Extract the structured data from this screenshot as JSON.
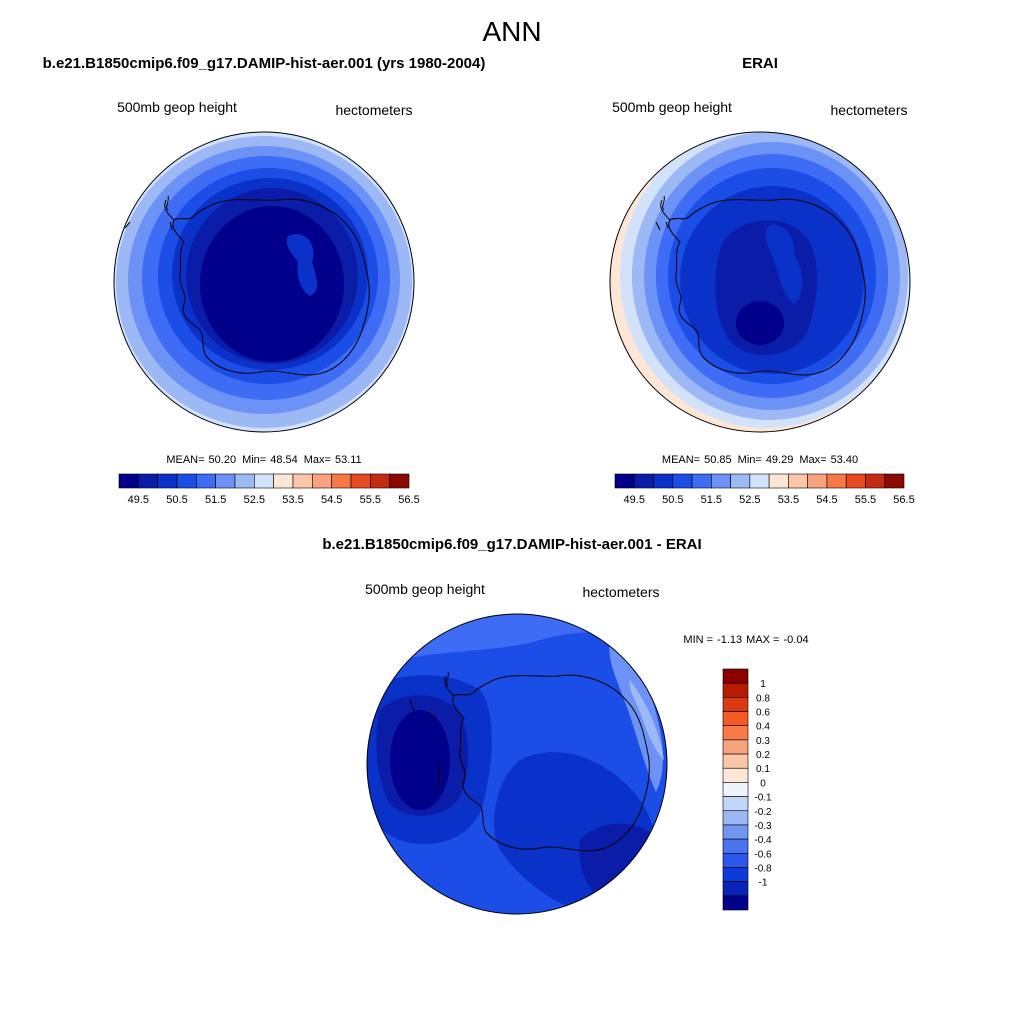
{
  "figure": {
    "title": "ANN"
  },
  "panel_left": {
    "title": "b.e21.B1850cmip6.f09_g17.DAMIP-hist-aer.001 (yrs 1980-2004)",
    "variable": "500mb geop height",
    "units": "hectometers",
    "stats": {
      "mean_label": "MEAN=",
      "mean": "50.20",
      "min_label": "Min=",
      "min": "48.54",
      "max_label": "Max=",
      "max": "53.11"
    }
  },
  "panel_right": {
    "title": "ERAI",
    "variable": "500mb geop height",
    "units": "hectometers",
    "stats": {
      "mean_label": "MEAN=",
      "mean": "50.85",
      "min_label": "Min=",
      "min": "49.29",
      "max_label": "Max=",
      "max": "53.40"
    }
  },
  "panel_diff": {
    "title": "b.e21.B1850cmip6.f09_g17.DAMIP-hist-aer.001 - ERAI",
    "variable": "500mb geop height",
    "units": "hectometers",
    "stats": {
      "min_label": "MIN =",
      "min": "-1.13",
      "max_label": "MAX =",
      "max": "-0.04"
    }
  },
  "colorbar_abs": {
    "colors": [
      "#00008b",
      "#0a1ca8",
      "#0b32c8",
      "#1b4ee6",
      "#3e6cf5",
      "#6d92f5",
      "#9cb8f5",
      "#d2e2fa",
      "#fde6d6",
      "#fcc6a8",
      "#f9a27e",
      "#f67846",
      "#e84b22",
      "#c52b12",
      "#8b0a00"
    ],
    "labels": [
      "49.5",
      "50.5",
      "51.5",
      "52.5",
      "53.5",
      "54.5",
      "55.5",
      "56.5"
    ]
  },
  "colorbar_diff": {
    "colors": [
      "#8b0000",
      "#b71c00",
      "#d93a10",
      "#f55a20",
      "#f77c48",
      "#f9a27e",
      "#fcc6a8",
      "#fde6d6",
      "#eef4fd",
      "#c2d6fa",
      "#9cb8f5",
      "#7096f0",
      "#4a74ec",
      "#2a58ea",
      "#0b3cd8",
      "#0a24b8",
      "#00008b"
    ],
    "labels": [
      "1",
      "0.8",
      "0.6",
      "0.4",
      "0.3",
      "0.2",
      "0.1",
      "0",
      "-0.1",
      "-0.2",
      "-0.3",
      "-0.4",
      "-0.6",
      "-0.8",
      "-1"
    ]
  },
  "map_colors": {
    "level0": "#00008b",
    "level1": "#0a1ca8",
    "level2": "#0b32c8",
    "level3": "#1b4ee6",
    "level4": "#3e6cf5",
    "level5": "#6d92f5",
    "level6": "#9cb8f5",
    "level7": "#d2e2fa",
    "level8": "#fde6d6",
    "coast": "#000000"
  }
}
